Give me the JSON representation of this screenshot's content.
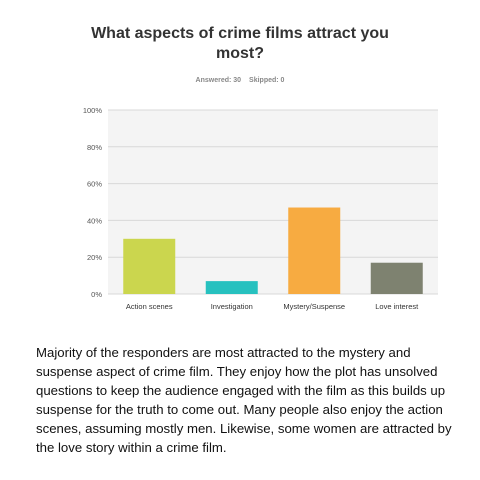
{
  "survey": {
    "answered_label": "Answered: 30",
    "skipped_label": "Skipped: 0"
  },
  "chart_data": {
    "type": "bar",
    "title_lines": [
      "What aspects of crime films attract you",
      "most?"
    ],
    "categories": [
      "Action scenes",
      "Investigation",
      "Mystery/Suspense",
      "Love interest"
    ],
    "values": [
      30,
      7,
      47,
      17
    ],
    "ylim": [
      0,
      100
    ],
    "yticks": [
      0,
      20,
      40,
      60,
      80,
      100
    ],
    "ytick_labels": [
      "0%",
      "20%",
      "40%",
      "60%",
      "80%",
      "100%"
    ],
    "colors": [
      "#cbd64e",
      "#27c1bf",
      "#f7ab41",
      "#7e8270"
    ],
    "grid": true,
    "legend": "none"
  },
  "caption": "Majority of the responders are most attracted to the mystery and suspense aspect of crime film. They enjoy how the plot has unsolved questions to keep the audience engaged with the film as this builds up suspense for the truth to come out. Many people also enjoy the action scenes, assuming mostly men. Likewise, some women are attracted by the love story within a crime film."
}
